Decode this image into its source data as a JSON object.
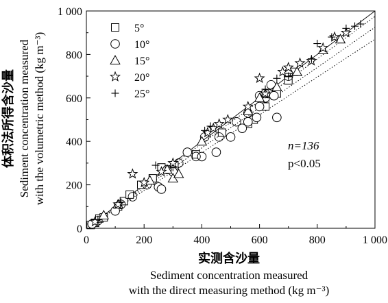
{
  "chart_data": {
    "type": "scatter",
    "xlabel": "实测含沙量",
    "xlabel_en_1": "Sediment concentration measured",
    "xlabel_en_2": "with the direct measuring method (kg m⁻³)",
    "ylabel": "体积法所得含沙量",
    "ylabel_en_1": "Sediment concentration measured",
    "ylabel_en_2": "with the volumetric method (kg m⁻³)",
    "xlim": [
      0,
      1000
    ],
    "ylim": [
      0,
      1000
    ],
    "x_ticks": [
      0,
      200,
      400,
      600,
      800,
      1000
    ],
    "y_ticks": [
      0,
      200,
      400,
      600,
      800,
      1000
    ],
    "x_tick_labels": [
      "0",
      "200",
      "400",
      "600",
      "800",
      "1 000"
    ],
    "y_tick_labels": [
      "0",
      "200",
      "400",
      "600",
      "800",
      "1 000"
    ],
    "annotation_n": "n=136",
    "annotation_p": "p<0.05",
    "legend_position": "top-left",
    "fit_line": {
      "x": [
        0,
        1000
      ],
      "y": [
        0,
        1000
      ]
    },
    "confidence_band_upper": {
      "x": [
        0,
        1000
      ],
      "y": [
        0,
        1000
      ]
    },
    "confidence_band_lower": {
      "x": [
        0,
        1000
      ],
      "y": [
        0,
        870
      ]
    },
    "series": [
      {
        "name": "5°",
        "marker": "square",
        "x": [
          15,
          30,
          45,
          60,
          110,
          130,
          150,
          190,
          230,
          260,
          305,
          380,
          470,
          560,
          580,
          620,
          660,
          700,
          720
        ],
        "y": [
          15,
          25,
          45,
          50,
          100,
          125,
          155,
          200,
          230,
          280,
          290,
          340,
          440,
          480,
          500,
          560,
          620,
          680,
          720
        ]
      },
      {
        "name": "10°",
        "marker": "circle",
        "x": [
          20,
          100,
          250,
          260,
          300,
          350,
          400,
          450,
          500,
          540,
          560,
          590,
          600,
          620,
          630,
          650,
          660
        ],
        "y": [
          20,
          80,
          190,
          180,
          260,
          350,
          330,
          350,
          420,
          460,
          490,
          510,
          560,
          600,
          620,
          610,
          510
        ],
        "ring_marks": [
          {
            "x": 40,
            "y": 35
          },
          {
            "x": 120,
            "y": 110
          },
          {
            "x": 160,
            "y": 145
          },
          {
            "x": 210,
            "y": 200
          },
          {
            "x": 280,
            "y": 270
          },
          {
            "x": 320,
            "y": 300
          },
          {
            "x": 380,
            "y": 330
          },
          {
            "x": 410,
            "y": 420
          },
          {
            "x": 460,
            "y": 420
          },
          {
            "x": 520,
            "y": 490
          },
          {
            "x": 560,
            "y": 530
          },
          {
            "x": 600,
            "y": 610
          },
          {
            "x": 620,
            "y": 620
          },
          {
            "x": 640,
            "y": 660
          },
          {
            "x": 700,
            "y": 700
          }
        ]
      },
      {
        "name": "15°",
        "marker": "triangle",
        "x": [
          60,
          110,
          220,
          280,
          300,
          320,
          400,
          560,
          600,
          660,
          700,
          730,
          820,
          880
        ],
        "y": [
          60,
          110,
          220,
          270,
          230,
          250,
          400,
          540,
          600,
          650,
          730,
          720,
          820,
          870
        ]
      },
      {
        "name": "20°",
        "marker": "star",
        "x": [
          30,
          110,
          160,
          200,
          260,
          300,
          420,
          440,
          460,
          490,
          560,
          600,
          620,
          680,
          700,
          740,
          780,
          820,
          860,
          900
        ],
        "y": [
          30,
          110,
          250,
          210,
          260,
          300,
          440,
          460,
          480,
          500,
          560,
          690,
          620,
          720,
          740,
          760,
          770,
          830,
          880,
          900
        ]
      },
      {
        "name": "25°",
        "marker": "plus",
        "x": [
          40,
          120,
          240,
          300,
          410,
          430,
          620,
          660,
          700,
          780,
          800,
          850,
          900,
          930,
          950
        ],
        "y": [
          40,
          120,
          290,
          280,
          450,
          470,
          640,
          690,
          700,
          780,
          850,
          880,
          920,
          930,
          940
        ]
      }
    ]
  }
}
